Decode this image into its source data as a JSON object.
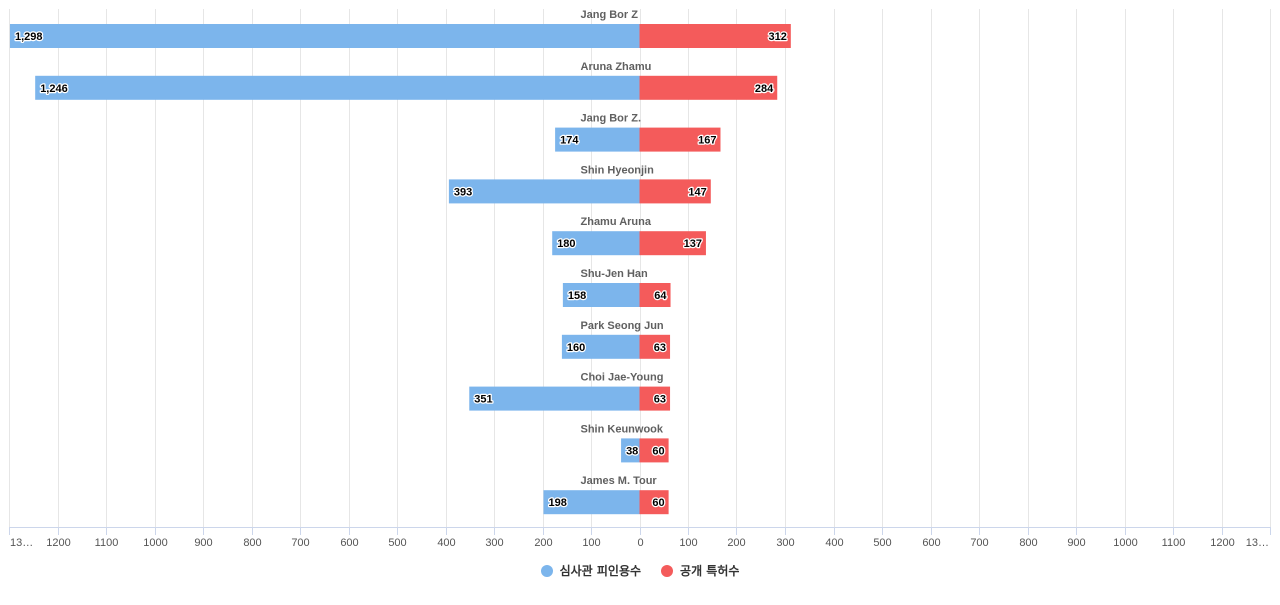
{
  "chart_data": {
    "type": "bar",
    "orientation": "horizontal-diverging",
    "categories": [
      "Jang Bor Z",
      "Aruna Zhamu",
      "Jang Bor Z.",
      "Shin Hyeonjin",
      "Zhamu Aruna",
      "Shu-Jen Han",
      "Park Seong Jun",
      "Choi Jae-Young",
      "Shin Keunwook",
      "James M. Tour"
    ],
    "series": [
      {
        "name": "심사관 피인용수",
        "color": "#7cb5ec",
        "side": "left",
        "values": [
          1298,
          1246,
          174,
          393,
          180,
          158,
          160,
          351,
          38,
          198
        ],
        "labels": [
          "1,298",
          "1,246",
          "174",
          "393",
          "180",
          "158",
          "160",
          "351",
          "38",
          "198"
        ]
      },
      {
        "name": "공개 특허수",
        "color": "#f45b5b",
        "side": "right",
        "values": [
          312,
          284,
          167,
          147,
          137,
          64,
          63,
          63,
          60,
          60
        ],
        "labels": [
          "312",
          "284",
          "167",
          "147",
          "137",
          "64",
          "63",
          "63",
          "60",
          "60"
        ]
      }
    ],
    "ticks": [
      "13…",
      "1200",
      "1100",
      "1000",
      "900",
      "800",
      "700",
      "600",
      "500",
      "400",
      "300",
      "200",
      "100",
      "0",
      "100",
      "200",
      "300",
      "400",
      "500",
      "600",
      "700",
      "800",
      "900",
      "1000",
      "1100",
      "1200",
      "13…"
    ],
    "tick_values": [
      -1300,
      -1200,
      -1100,
      -1000,
      -900,
      -800,
      -700,
      -600,
      -500,
      -400,
      -300,
      -200,
      -100,
      0,
      100,
      200,
      300,
      400,
      500,
      600,
      700,
      800,
      900,
      1000,
      1100,
      1200,
      1300
    ],
    "xlim": [
      -1300,
      1300
    ],
    "grid": true,
    "legend": "bottom-center"
  }
}
